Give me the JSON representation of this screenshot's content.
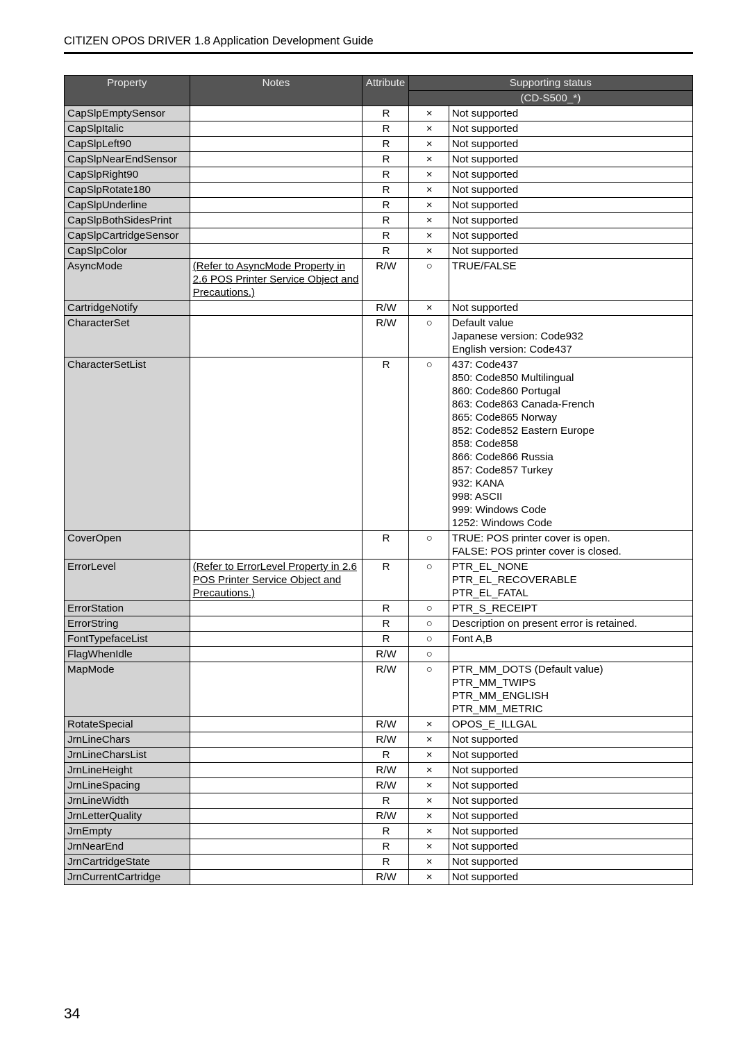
{
  "header": {
    "title": "CITIZEN OPOS DRIVER 1.8 Application Development Guide"
  },
  "page_number": "34",
  "table": {
    "header": {
      "property": "Property",
      "notes": "Notes",
      "attribute": "Attribute",
      "supporting_status": "Supporting status",
      "device": "(CD-S500_*)"
    },
    "marks": {
      "ok": "○",
      "no": "×"
    },
    "rows": [
      {
        "prop": "CapSlpEmptySensor",
        "notes": "",
        "attr": "R",
        "sup1": "×",
        "sup2": "Not supported"
      },
      {
        "prop": "CapSlpItalic",
        "notes": "",
        "attr": "R",
        "sup1": "×",
        "sup2": "Not supported"
      },
      {
        "prop": "CapSlpLeft90",
        "notes": "",
        "attr": "R",
        "sup1": "×",
        "sup2": "Not supported"
      },
      {
        "prop": "CapSlpNearEndSensor",
        "notes": "",
        "attr": "R",
        "sup1": "×",
        "sup2": "Not supported"
      },
      {
        "prop": "CapSlpRight90",
        "notes": "",
        "attr": "R",
        "sup1": "×",
        "sup2": "Not supported"
      },
      {
        "prop": "CapSlpRotate180",
        "notes": "",
        "attr": "R",
        "sup1": "×",
        "sup2": "Not supported"
      },
      {
        "prop": "CapSlpUnderline",
        "notes": "",
        "attr": "R",
        "sup1": "×",
        "sup2": "Not supported"
      },
      {
        "prop": "CapSlpBothSidesPrint",
        "notes": "",
        "attr": "R",
        "sup1": "×",
        "sup2": "Not supported"
      },
      {
        "prop": "CapSlpCartridgeSensor",
        "notes": "",
        "attr": "R",
        "sup1": "×",
        "sup2": "Not supported"
      },
      {
        "prop": "CapSlpColor",
        "notes": "",
        "attr": "R",
        "sup1": "×",
        "sup2": "Not supported"
      },
      {
        "prop": "AsyncMode",
        "notes_link": "(Refer to AsyncMode Property in 2.6 POS Printer Service Object and Precautions.)",
        "attr": "R/W",
        "sup1": "○",
        "sup2": "TRUE/FALSE"
      },
      {
        "prop": "CartridgeNotify",
        "notes": "",
        "attr": "R/W",
        "sup1": "×",
        "sup2": "Not supported"
      },
      {
        "prop": "CharacterSet",
        "notes": "",
        "attr": "R/W",
        "sup1": "○",
        "sup2": "Default value\n  Japanese version: Code932\n  English version: Code437"
      },
      {
        "prop": "CharacterSetList",
        "notes": "",
        "attr": "R",
        "sup1": "○",
        "sup2": "437: Code437\n850: Code850 Multilingual\n860: Code860 Portugal\n863: Code863 Canada-French\n865: Code865 Norway\n852: Code852 Eastern Europe\n858: Code858\n866: Code866 Russia\n857: Code857 Turkey\n932: KANA\n998: ASCII\n999: Windows Code\n1252: Windows Code"
      },
      {
        "prop": "CoverOpen",
        "notes": "",
        "attr": "R",
        "sup1": "○",
        "sup2": "TRUE: POS printer cover is open.\nFALSE: POS printer cover is closed."
      },
      {
        "prop": "ErrorLevel",
        "notes_link": "(Refer to ErrorLevel Property in 2.6 POS Printer Service Object and Precautions.)",
        "attr": "R",
        "sup1": "○",
        "sup2": "PTR_EL_NONE\nPTR_EL_RECOVERABLE\nPTR_EL_FATAL"
      },
      {
        "prop": "ErrorStation",
        "notes": "",
        "attr": "R",
        "sup1": "○",
        "sup2": "PTR_S_RECEIPT"
      },
      {
        "prop": "ErrorString",
        "notes": "",
        "attr": "R",
        "sup1": "○",
        "sup2": "Description on present error is retained."
      },
      {
        "prop": "FontTypefaceList",
        "notes": "",
        "attr": "R",
        "sup1": "○",
        "sup2": "Font A,B"
      },
      {
        "prop": "FlagWhenIdle",
        "notes": "",
        "attr": "R/W",
        "sup1": "○",
        "sup2": ""
      },
      {
        "prop": "MapMode",
        "notes": "",
        "attr": "R/W",
        "sup1": "○",
        "sup2": "PTR_MM_DOTS (Default value)\nPTR_MM_TWIPS\nPTR_MM_ENGLISH\nPTR_MM_METRIC"
      },
      {
        "prop": "RotateSpecial",
        "notes": "",
        "attr": "R/W",
        "sup1": "×",
        "sup2": "OPOS_E_ILLGAL"
      },
      {
        "prop": "JrnLineChars",
        "notes": "",
        "attr": "R/W",
        "sup1": "×",
        "sup2": "Not supported"
      },
      {
        "prop": "JrnLineCharsList",
        "notes": "",
        "attr": "R",
        "sup1": "×",
        "sup2": "Not supported"
      },
      {
        "prop": "JrnLineHeight",
        "notes": "",
        "attr": "R/W",
        "sup1": "×",
        "sup2": "Not supported"
      },
      {
        "prop": "JrnLineSpacing",
        "notes": "",
        "attr": "R/W",
        "sup1": "×",
        "sup2": "Not supported"
      },
      {
        "prop": "JrnLineWidth",
        "notes": "",
        "attr": "R",
        "sup1": "×",
        "sup2": "Not supported"
      },
      {
        "prop": "JrnLetterQuality",
        "notes": "",
        "attr": "R/W",
        "sup1": "×",
        "sup2": "Not supported"
      },
      {
        "prop": "JrnEmpty",
        "notes": "",
        "attr": "R",
        "sup1": "×",
        "sup2": "Not supported"
      },
      {
        "prop": "JrnNearEnd",
        "notes": "",
        "attr": "R",
        "sup1": "×",
        "sup2": "Not supported"
      },
      {
        "prop": "JrnCartridgeState",
        "notes": "",
        "attr": "R",
        "sup1": "×",
        "sup2": "Not supported"
      },
      {
        "prop": "JrnCurrentCartridge",
        "notes": "",
        "attr": "R/W",
        "sup1": "×",
        "sup2": "Not supported"
      }
    ]
  }
}
